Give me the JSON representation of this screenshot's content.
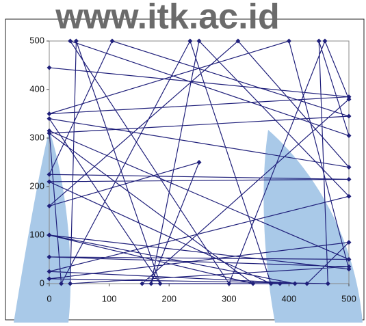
{
  "chart_data": {
    "type": "line",
    "watermark": "www.itk.ac.id",
    "color": "#1f1f7a",
    "x": [
      0,
      500,
      0,
      400,
      500,
      0,
      340,
      0,
      500,
      105,
      0,
      500,
      0,
      370,
      235,
      20,
      0,
      500,
      0,
      500,
      35,
      45,
      185,
      0,
      500,
      315,
      0,
      250,
      170,
      250,
      500,
      0,
      430,
      500,
      0,
      465,
      450,
      500,
      35,
      300,
      460,
      500,
      155,
      385,
      410,
      0
    ],
    "values": [
      445,
      385,
      350,
      500,
      30,
      100,
      0,
      310,
      345,
      500,
      225,
      215,
      210,
      0,
      500,
      0,
      315,
      50,
      55,
      35,
      0,
      500,
      0,
      340,
      240,
      500,
      160,
      250,
      0,
      500,
      180,
      25,
      0,
      85,
      10,
      0,
      500,
      305,
      500,
      0,
      500,
      380,
      0,
      0,
      0,
      100
    ],
    "xlim": [
      0,
      500
    ],
    "ylim": [
      0,
      500
    ],
    "xticks": [
      0,
      100,
      200,
      300,
      400,
      500
    ],
    "yticks": [
      0,
      100,
      200,
      300,
      400,
      500
    ]
  }
}
